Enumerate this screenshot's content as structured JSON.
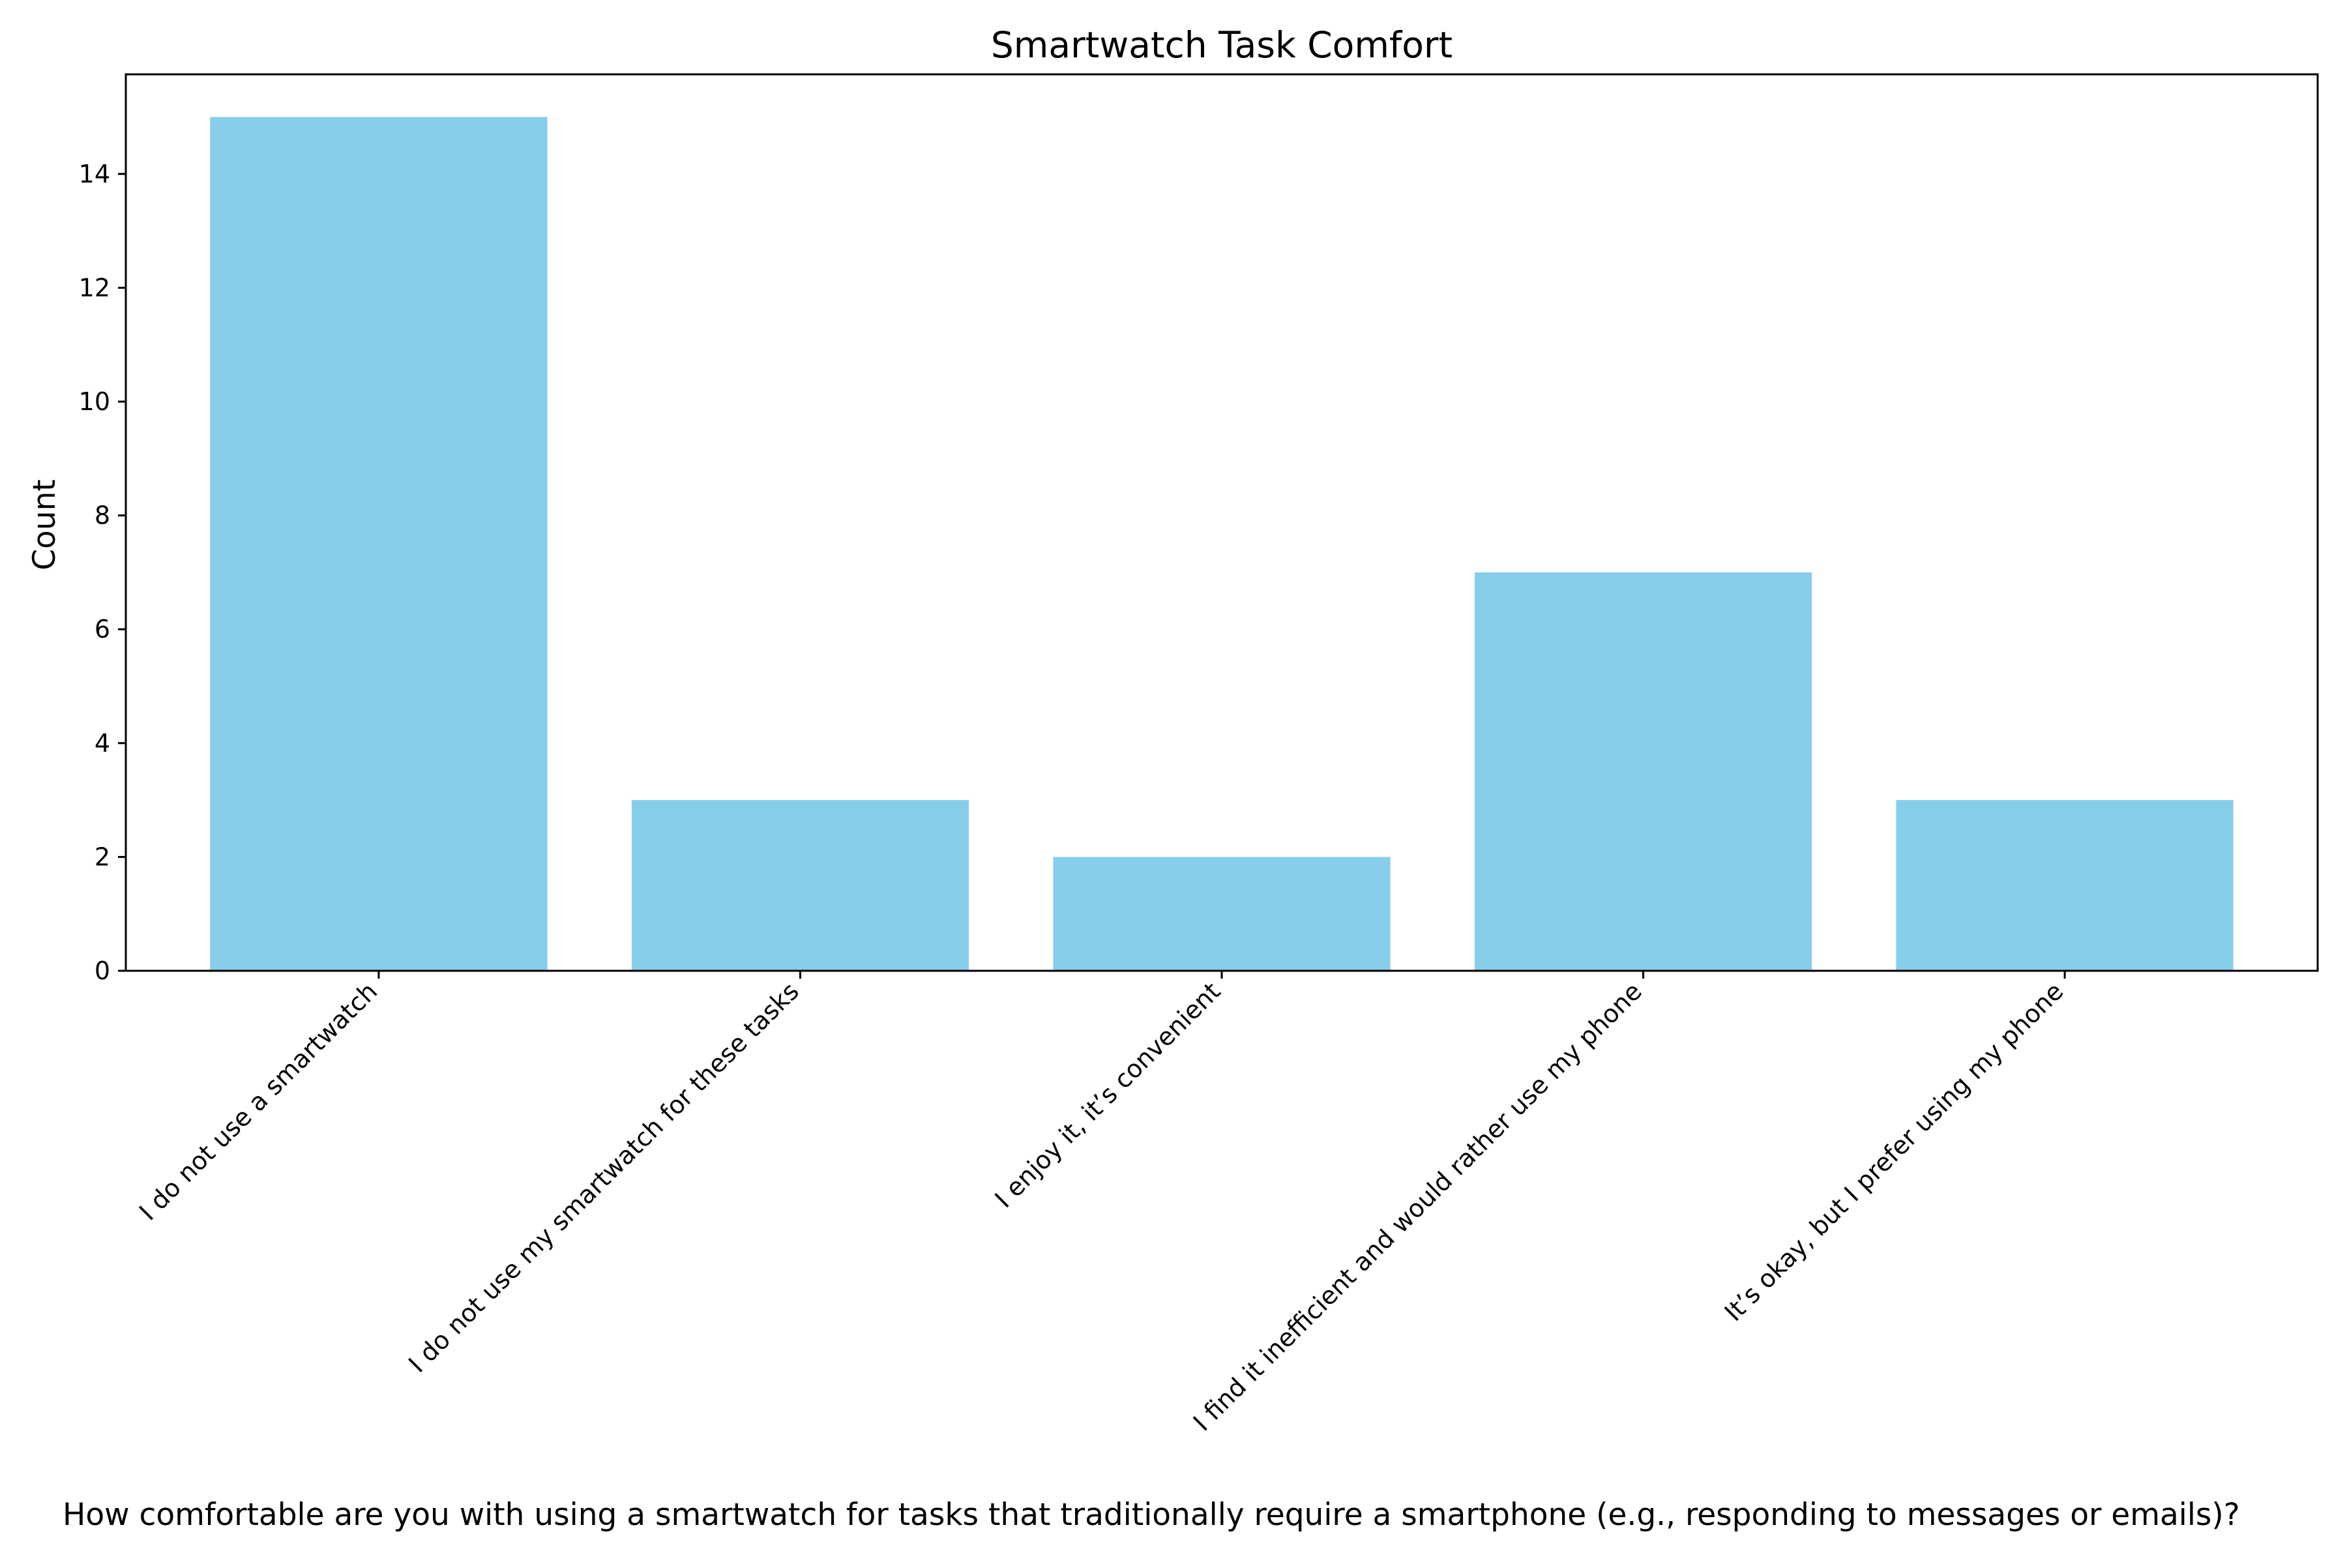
{
  "chart_data": {
    "type": "bar",
    "title": "Smartwatch Task Comfort",
    "xlabel": "How comfortable are you with using a smartwatch for tasks that traditionally require a smartphone (e.g., responding to messages or emails)?",
    "ylabel": "Count",
    "categories": [
      "I do not use a smartwatch",
      "I do not use my smartwatch for these tasks",
      "I enjoy it, it’s convenient",
      "I find it inefficient and would rather use my phone",
      "It’s okay, but I prefer using my phone"
    ],
    "values": [
      15,
      3,
      2,
      7,
      3
    ],
    "ylim": [
      0,
      15.75
    ],
    "yticks": [
      0,
      2,
      4,
      6,
      8,
      10,
      12,
      14
    ],
    "bar_color": "#87CEEB",
    "grid": false,
    "legend": "none"
  }
}
